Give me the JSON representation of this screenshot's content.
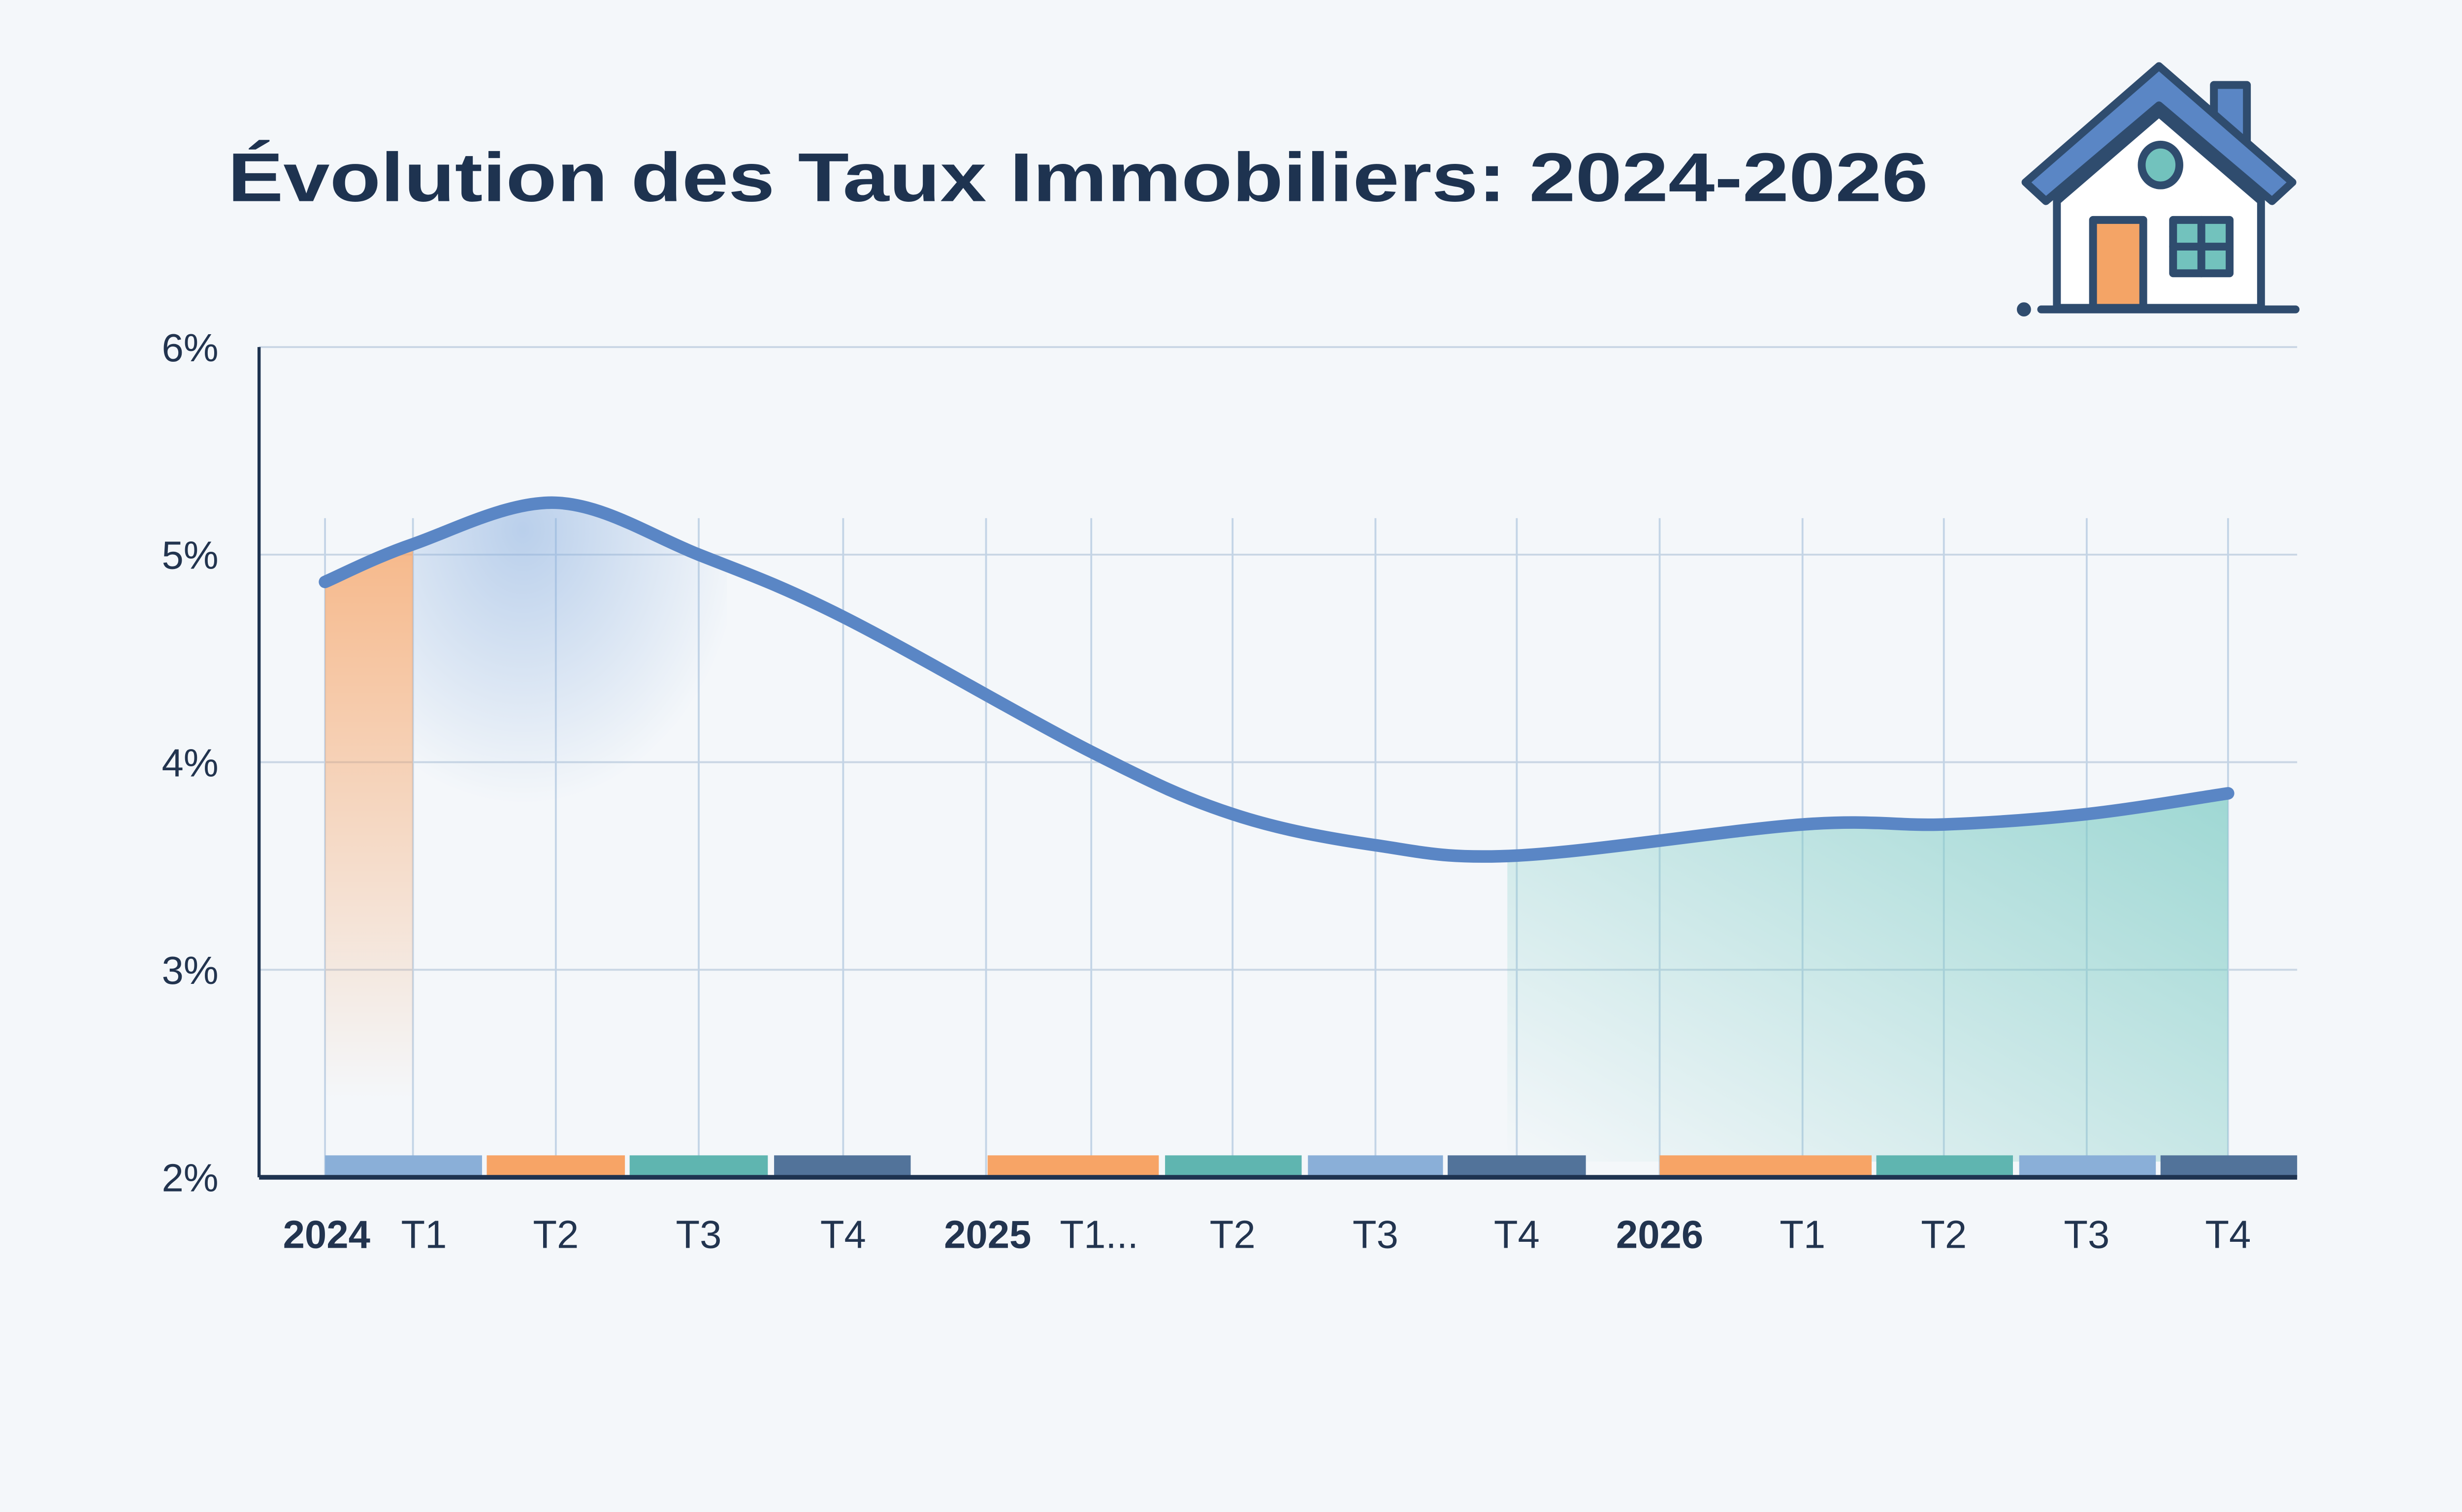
{
  "chart_data": {
    "type": "line",
    "title": "Évolution des Taux Immobiliers: 2024-2026",
    "xlabel": "",
    "ylabel": "",
    "ylim": [
      2,
      6
    ],
    "yticks": [
      "2%",
      "3%",
      "4%",
      "5%",
      "6%"
    ],
    "grid": true,
    "categories": [
      {
        "year": "2024",
        "label": "T1"
      },
      {
        "year": "",
        "label": "T2"
      },
      {
        "year": "",
        "label": "T3"
      },
      {
        "year": "",
        "label": "T4"
      },
      {
        "year": "2025",
        "label": "T1..."
      },
      {
        "year": "",
        "label": "T2"
      },
      {
        "year": "",
        "label": "T3"
      },
      {
        "year": "",
        "label": "T4"
      },
      {
        "year": "2026",
        "label": "T1"
      },
      {
        "year": "",
        "label": "T2"
      },
      {
        "year": "",
        "label": "T3"
      },
      {
        "year": "",
        "label": "T4"
      }
    ],
    "values": [
      5.05,
      5.25,
      5.0,
      4.7,
      4.05,
      3.75,
      3.6,
      3.55,
      3.7,
      3.7,
      3.75,
      3.85
    ],
    "quarter_marker_colors": [
      "#8aafd8",
      "#f7a466",
      "#5fb5b0",
      "#52739a",
      "#f7a466",
      "#5fb5b0",
      "#8aafd8",
      "#52739a",
      "#f7a466",
      "#5fb5b0",
      "#8aafd8",
      "#52739a"
    ],
    "line_color": "#5a86c5"
  },
  "icon": "house-icon"
}
